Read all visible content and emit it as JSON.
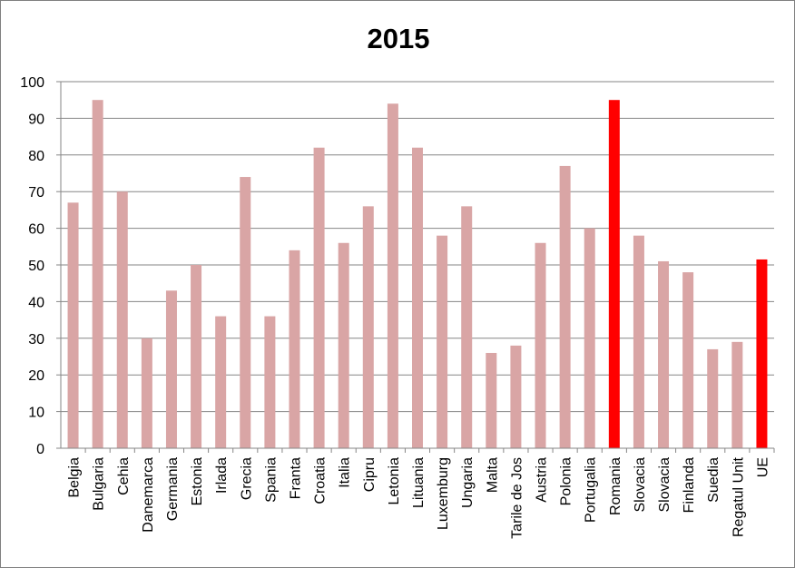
{
  "chart_data": {
    "type": "bar",
    "title": "2015",
    "xlabel": "",
    "ylabel": "",
    "ylim": [
      0,
      100
    ],
    "yticks": [
      0,
      10,
      20,
      30,
      40,
      50,
      60,
      70,
      80,
      90,
      100
    ],
    "grid": true,
    "legend": "none",
    "categories": [
      "Belgia",
      "Bulgaria",
      "Cehia",
      "Danemarca",
      "Germania",
      "Estonia",
      "Irlada",
      "Grecia",
      "Spania",
      "Franta",
      "Croatia",
      "Italia",
      "Cipru",
      "Letonia",
      "Lituania",
      "Luxemburg",
      "Ungaria",
      "Malta",
      "Tarile de Jos",
      "Austria",
      "Polonia",
      "Portugalia",
      "Romania",
      "Slovacia",
      "Slovacia",
      "Finlanda",
      "Suedia",
      "Regatul Unit",
      "UE"
    ],
    "values": [
      67,
      95,
      70,
      30,
      43,
      50,
      36,
      74,
      36,
      54,
      82,
      56,
      66,
      94,
      82,
      58,
      66,
      26,
      28,
      56,
      77,
      60,
      95,
      58,
      51,
      48,
      27,
      29,
      51.5
    ],
    "highlight": [
      "Romania",
      "UE"
    ],
    "colors": {
      "default": "#d9a5a5",
      "highlight": "#ff0000",
      "grid": "#868686",
      "axis": "#868686"
    }
  }
}
